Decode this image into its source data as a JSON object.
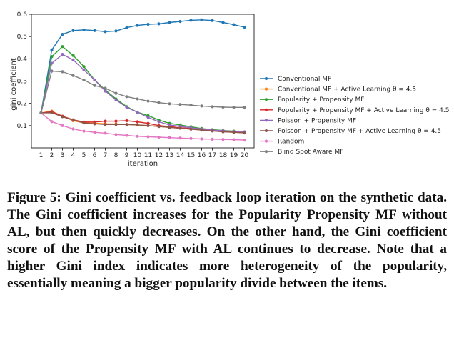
{
  "chart_data": {
    "type": "line",
    "xlabel": "iteration",
    "ylabel": "gini coefficient",
    "xlim": [
      0.1,
      20.9
    ],
    "ylim": [
      0.0,
      0.6
    ],
    "x": [
      1,
      2,
      3,
      4,
      5,
      6,
      7,
      8,
      9,
      10,
      11,
      12,
      13,
      14,
      15,
      16,
      17,
      18,
      19,
      20
    ],
    "x_ticks": [
      "1",
      "2",
      "3",
      "4",
      "5",
      "6",
      "7",
      "8",
      "9",
      "10",
      "11",
      "12",
      "13",
      "14",
      "15",
      "16",
      "17",
      "18",
      "19",
      "20"
    ],
    "y_ticks": [
      "0.1",
      "0.2",
      "0.3",
      "0.4",
      "0.5",
      "0.6"
    ],
    "grid": false,
    "legend_position": "right",
    "series": [
      {
        "name": "Conventional MF",
        "color": "#1f77b4",
        "values": [
          0.157,
          0.44,
          0.51,
          0.527,
          0.53,
          0.527,
          0.522,
          0.525,
          0.54,
          0.55,
          0.555,
          0.557,
          0.563,
          0.568,
          0.573,
          0.575,
          0.572,
          0.563,
          0.553,
          0.542
        ]
      },
      {
        "name": "Conventional MF + Active Learning θ = 4.5",
        "color": "#ff7f0e",
        "values": [
          0.157,
          0.165,
          0.142,
          0.122,
          0.112,
          0.111,
          0.108,
          0.107,
          0.105,
          0.103,
          0.1,
          0.096,
          0.092,
          0.088,
          0.084,
          0.08,
          0.076,
          0.073,
          0.07,
          0.068
        ]
      },
      {
        "name": "Popularity + Propensity MF",
        "color": "#2ca02c",
        "values": [
          0.157,
          0.41,
          0.455,
          0.415,
          0.365,
          0.305,
          0.26,
          0.22,
          0.185,
          0.16,
          0.145,
          0.125,
          0.11,
          0.103,
          0.095,
          0.087,
          0.082,
          0.078,
          0.075,
          0.072
        ]
      },
      {
        "name": "Popularity + Propensity MF + Active Learning θ = 4.5",
        "color": "#d62728",
        "values": [
          0.157,
          0.162,
          0.142,
          0.126,
          0.116,
          0.116,
          0.12,
          0.12,
          0.122,
          0.117,
          0.11,
          0.1,
          0.096,
          0.09,
          0.087,
          0.085,
          0.079,
          0.075,
          0.072,
          0.07
        ]
      },
      {
        "name": "Poisson + Propensity MF",
        "color": "#9467bd",
        "values": [
          0.157,
          0.38,
          0.42,
          0.395,
          0.35,
          0.305,
          0.255,
          0.215,
          0.182,
          0.16,
          0.137,
          0.117,
          0.103,
          0.097,
          0.09,
          0.085,
          0.08,
          0.077,
          0.074,
          0.072
        ]
      },
      {
        "name": "Poisson + Propensity MF + Active Learning θ = 4.5",
        "color": "#8c564b",
        "values": [
          0.157,
          0.158,
          0.14,
          0.125,
          0.112,
          0.108,
          0.105,
          0.105,
          0.105,
          0.103,
          0.1,
          0.096,
          0.092,
          0.088,
          0.084,
          0.08,
          0.076,
          0.072,
          0.07,
          0.067
        ]
      },
      {
        "name": "Random",
        "color": "#e377c2",
        "values": [
          0.157,
          0.118,
          0.1,
          0.085,
          0.075,
          0.07,
          0.066,
          0.06,
          0.056,
          0.052,
          0.05,
          0.048,
          0.046,
          0.044,
          0.042,
          0.04,
          0.039,
          0.038,
          0.037,
          0.035
        ]
      },
      {
        "name": "Blind Spot Aware MF",
        "color": "#7f7f7f",
        "values": [
          0.157,
          0.345,
          0.342,
          0.325,
          0.305,
          0.28,
          0.268,
          0.245,
          0.23,
          0.22,
          0.21,
          0.203,
          0.198,
          0.195,
          0.192,
          0.188,
          0.185,
          0.183,
          0.182,
          0.182
        ]
      }
    ]
  },
  "caption": {
    "text": "Figure 5: Gini coefficient vs. feedback loop iteration on the synthetic data. The Gini coefficient increases for the Popu­larity Propensity MF without AL, but then quickly decreases. On the other hand, the Gini coefficient score of the Propen­sity MF with AL continues to decrease. Note that a higher Gini index indicates more heterogeneity of the popularity, essentially meaning a bigger popularity divide between the items."
  }
}
